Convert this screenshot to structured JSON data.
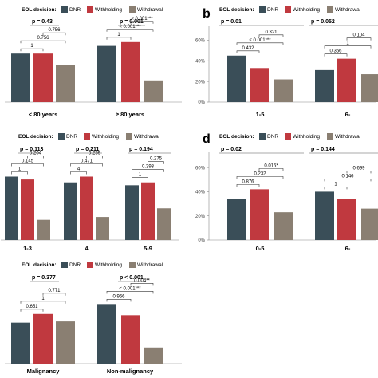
{
  "colors": {
    "DNR": "#3a4e58",
    "Withholding": "#c0393f",
    "Withdrawal": "#8a7f72",
    "text": "#000000",
    "axis": "#888888"
  },
  "chart_data": [
    {
      "type": "bar",
      "panel_label": "",
      "legend": {
        "title": "EOL decision:",
        "entries": [
          "DNR",
          "Withholding",
          "Withdrawal"
        ],
        "placement": "top"
      },
      "ylim": [
        0,
        0.55
      ],
      "show_y_axis": false,
      "categories": [
        "< 80 years",
        "≥ 80 years"
      ],
      "series": [
        {
          "name": "DNR",
          "values": [
            0.38,
            0.44
          ]
        },
        {
          "name": "Withholding",
          "values": [
            0.38,
            0.47
          ]
        },
        {
          "name": "Withdrawal",
          "values": [
            0.29,
            0.17
          ]
        }
      ],
      "group_p": [
        "p = 0.43",
        "p = 0.001"
      ],
      "comparisons": [
        [
          {
            "pair": [
              0,
              1
            ],
            "label": "1"
          },
          {
            "pair": [
              0,
              2
            ],
            "label": "0.756"
          },
          {
            "pair": [
              1,
              2
            ],
            "label": "0.756"
          }
        ],
        [
          {
            "pair": [
              0,
              1
            ],
            "label": "1"
          },
          {
            "pair": [
              0,
              2
            ],
            "label": "< 0.001***"
          },
          {
            "pair": [
              1,
              2
            ],
            "label": "< 0.001***"
          }
        ]
      ]
    },
    {
      "type": "bar",
      "panel_label": "b",
      "legend": {
        "title": "EOL decision:",
        "entries": [
          "DNR",
          "Withholding",
          "Withdrawal"
        ],
        "placement": "top"
      },
      "ylim": [
        0,
        0.68
      ],
      "show_y_axis": true,
      "yticks": [
        0,
        0.2,
        0.4,
        0.6
      ],
      "ytick_labels": [
        "0%",
        "20%",
        "40%",
        "60%"
      ],
      "categories": [
        "1-5",
        "6-"
      ],
      "series": [
        {
          "name": "DNR",
          "values": [
            0.45,
            0.31
          ]
        },
        {
          "name": "Withholding",
          "values": [
            0.33,
            0.42
          ]
        },
        {
          "name": "Withdrawal",
          "values": [
            0.22,
            0.27
          ]
        }
      ],
      "group_p": [
        "p = 0.01",
        "p = 0.052"
      ],
      "comparisons": [
        [
          {
            "pair": [
              0,
              1
            ],
            "label": "0.432"
          },
          {
            "pair": [
              0,
              2
            ],
            "label": "< 0.001***"
          },
          {
            "pair": [
              1,
              2
            ],
            "label": "0.321"
          }
        ],
        [
          {
            "pair": [
              0,
              1
            ],
            "label": "0.366"
          },
          {
            "pair": [
              0,
              2
            ],
            "label": "1"
          },
          {
            "pair": [
              1,
              2
            ],
            "label": "0.104"
          }
        ]
      ]
    },
    {
      "type": "bar",
      "panel_label": "",
      "legend": {
        "title": "EOL decision:",
        "entries": [
          "DNR",
          "Withholding",
          "Withdrawal"
        ],
        "placement": "top"
      },
      "ylim": [
        0,
        0.57
      ],
      "show_y_axis": false,
      "categories": [
        "1-3",
        "4",
        "5-9"
      ],
      "series": [
        {
          "name": "DNR",
          "values": [
            0.44,
            0.4,
            0.38
          ]
        },
        {
          "name": "Withholding",
          "values": [
            0.42,
            0.44,
            0.4
          ]
        },
        {
          "name": "Withdrawal",
          "values": [
            0.14,
            0.16,
            0.22
          ]
        }
      ],
      "group_p": [
        "p = 0.113",
        "p = 0.211",
        "p = 0.194"
      ],
      "comparisons": [
        [
          {
            "pair": [
              0,
              1
            ],
            "label": "1"
          },
          {
            "pair": [
              0,
              2
            ],
            "label": "0.145"
          },
          {
            "pair": [
              1,
              2
            ],
            "label": "0.204"
          }
        ],
        [
          {
            "pair": [
              0,
              1
            ],
            "label": "4"
          },
          {
            "pair": [
              0,
              2
            ],
            "label": "0.471"
          },
          {
            "pair": [
              1,
              2
            ],
            "label": "0.259"
          }
        ],
        [
          {
            "pair": [
              0,
              1
            ],
            "label": "1"
          },
          {
            "pair": [
              0,
              2
            ],
            "label": "0.393"
          },
          {
            "pair": [
              1,
              2
            ],
            "label": "0.275"
          }
        ]
      ]
    },
    {
      "type": "bar",
      "panel_label": "d",
      "legend": {
        "title": "EOL decision:",
        "entries": [
          "DNR",
          "Withholding",
          "Withdrawal"
        ],
        "placement": "top"
      },
      "ylim": [
        0,
        0.68
      ],
      "show_y_axis": true,
      "yticks": [
        0,
        0.2,
        0.4,
        0.6
      ],
      "ytick_labels": [
        "0%",
        "20%",
        "40%",
        "60%"
      ],
      "categories": [
        "0-5",
        "6-"
      ],
      "series": [
        {
          "name": "DNR",
          "values": [
            0.34,
            0.4
          ]
        },
        {
          "name": "Withholding",
          "values": [
            0.42,
            0.34
          ]
        },
        {
          "name": "Withdrawal",
          "values": [
            0.23,
            0.26
          ]
        }
      ],
      "group_p": [
        "p = 0.02",
        "p = 0.144"
      ],
      "comparisons": [
        [
          {
            "pair": [
              0,
              1
            ],
            "label": "0.876"
          },
          {
            "pair": [
              0,
              2
            ],
            "label": "0.232"
          },
          {
            "pair": [
              1,
              2
            ],
            "label": "0.015*"
          }
        ],
        [
          {
            "pair": [
              0,
              1
            ],
            "label": "1"
          },
          {
            "pair": [
              0,
              2
            ],
            "label": "0.146"
          },
          {
            "pair": [
              1,
              2
            ],
            "label": "0.699"
          }
        ]
      ]
    },
    {
      "type": "bar",
      "panel_label": "",
      "legend": {
        "title": "EOL decision:",
        "entries": [
          "DNR",
          "Withholding",
          "Withdrawal"
        ],
        "placement": "top"
      },
      "ylim": [
        0,
        0.63
      ],
      "show_y_axis": false,
      "categories": [
        "Malignancy",
        "Non-malignancy"
      ],
      "series": [
        {
          "name": "DNR",
          "values": [
            0.33,
            0.48
          ]
        },
        {
          "name": "Withholding",
          "values": [
            0.4,
            0.39
          ]
        },
        {
          "name": "Withdrawal",
          "values": [
            0.34,
            0.13
          ]
        }
      ],
      "group_p": [
        "p = 0.377",
        "p < 0.001"
      ],
      "comparisons": [
        [
          {
            "pair": [
              0,
              1
            ],
            "label": "0.651"
          },
          {
            "pair": [
              0,
              2
            ],
            "label": "1"
          },
          {
            "pair": [
              1,
              2
            ],
            "label": "0.771"
          }
        ],
        [
          {
            "pair": [
              0,
              1
            ],
            "label": "0.966"
          },
          {
            "pair": [
              0,
              2
            ],
            "label": "< 0.001***"
          },
          {
            "pair": [
              1,
              2
            ],
            "label": "0.004**"
          }
        ]
      ]
    }
  ]
}
